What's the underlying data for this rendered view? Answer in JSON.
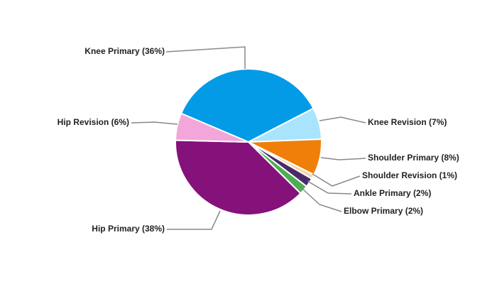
{
  "chart_data": {
    "type": "pie",
    "values": [
      36,
      7,
      8,
      1,
      2,
      2,
      38,
      6
    ],
    "value_labels": [
      "Knee Primary (36%)",
      "Knee Revision (7%)",
      "Shoulder Primary (8%)",
      "Shoulder Revision (1%)",
      "Ankle Primary (2%)",
      "Elbow Primary (2%)",
      "Hip Primary (38%)",
      "Hip Revision (6%)"
    ],
    "colors": [
      "#039be5",
      "#a8e4fd",
      "#f07f09",
      "#f7d7a8",
      "#4b2a6b",
      "#4caf50",
      "#85117a",
      "#f2a6d9"
    ]
  }
}
